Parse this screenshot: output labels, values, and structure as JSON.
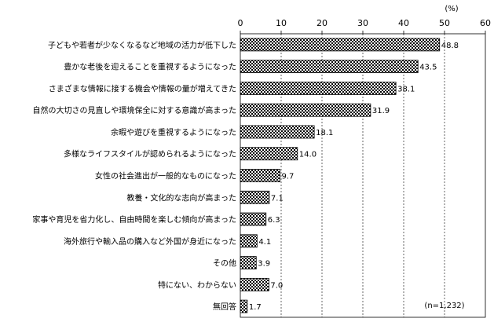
{
  "chart_data": {
    "type": "bar",
    "orientation": "horizontal",
    "unit_label": "(%)",
    "note": "(n=1,232)",
    "xlim": [
      0,
      60
    ],
    "ticks": [
      0,
      10,
      20,
      30,
      40,
      50,
      60
    ],
    "tick_labels": [
      "0",
      "10",
      "20",
      "30",
      "40",
      "50",
      "60"
    ],
    "grid": "vertical dashed",
    "bar_fill": "checkered",
    "categories": [
      "子どもや若者が少なくなるなど地域の活力が低下した",
      "豊かな老後を迎えることを重視するようになった",
      "さまざまな情報に接する機会や情報の量が増えてきた",
      "自然の大切さの見直しや環境保全に対する意識が高まった",
      "余暇や遊びを重視するようになった",
      "多様なライフスタイルが認められるようになった",
      "女性の社会進出が一般的なものになった",
      "教養・文化的な志向が高まった",
      "家事や育児を省力化し、自由時間を楽しむ傾向が高まった",
      "海外旅行や輸入品の購入など外国が身近になった",
      "その他",
      "特にない、わからない",
      "無回答"
    ],
    "values": [
      48.8,
      43.5,
      38.1,
      31.9,
      18.1,
      14.0,
      9.7,
      7.1,
      6.3,
      4.1,
      3.9,
      7.0,
      1.7
    ],
    "value_labels": [
      "48.8",
      "43.5",
      "38.1",
      "31.9",
      "18.1",
      "14.0",
      "9.7",
      "7.1",
      "6.3",
      "4.1",
      "3.9",
      "7.0",
      "1.7"
    ]
  }
}
